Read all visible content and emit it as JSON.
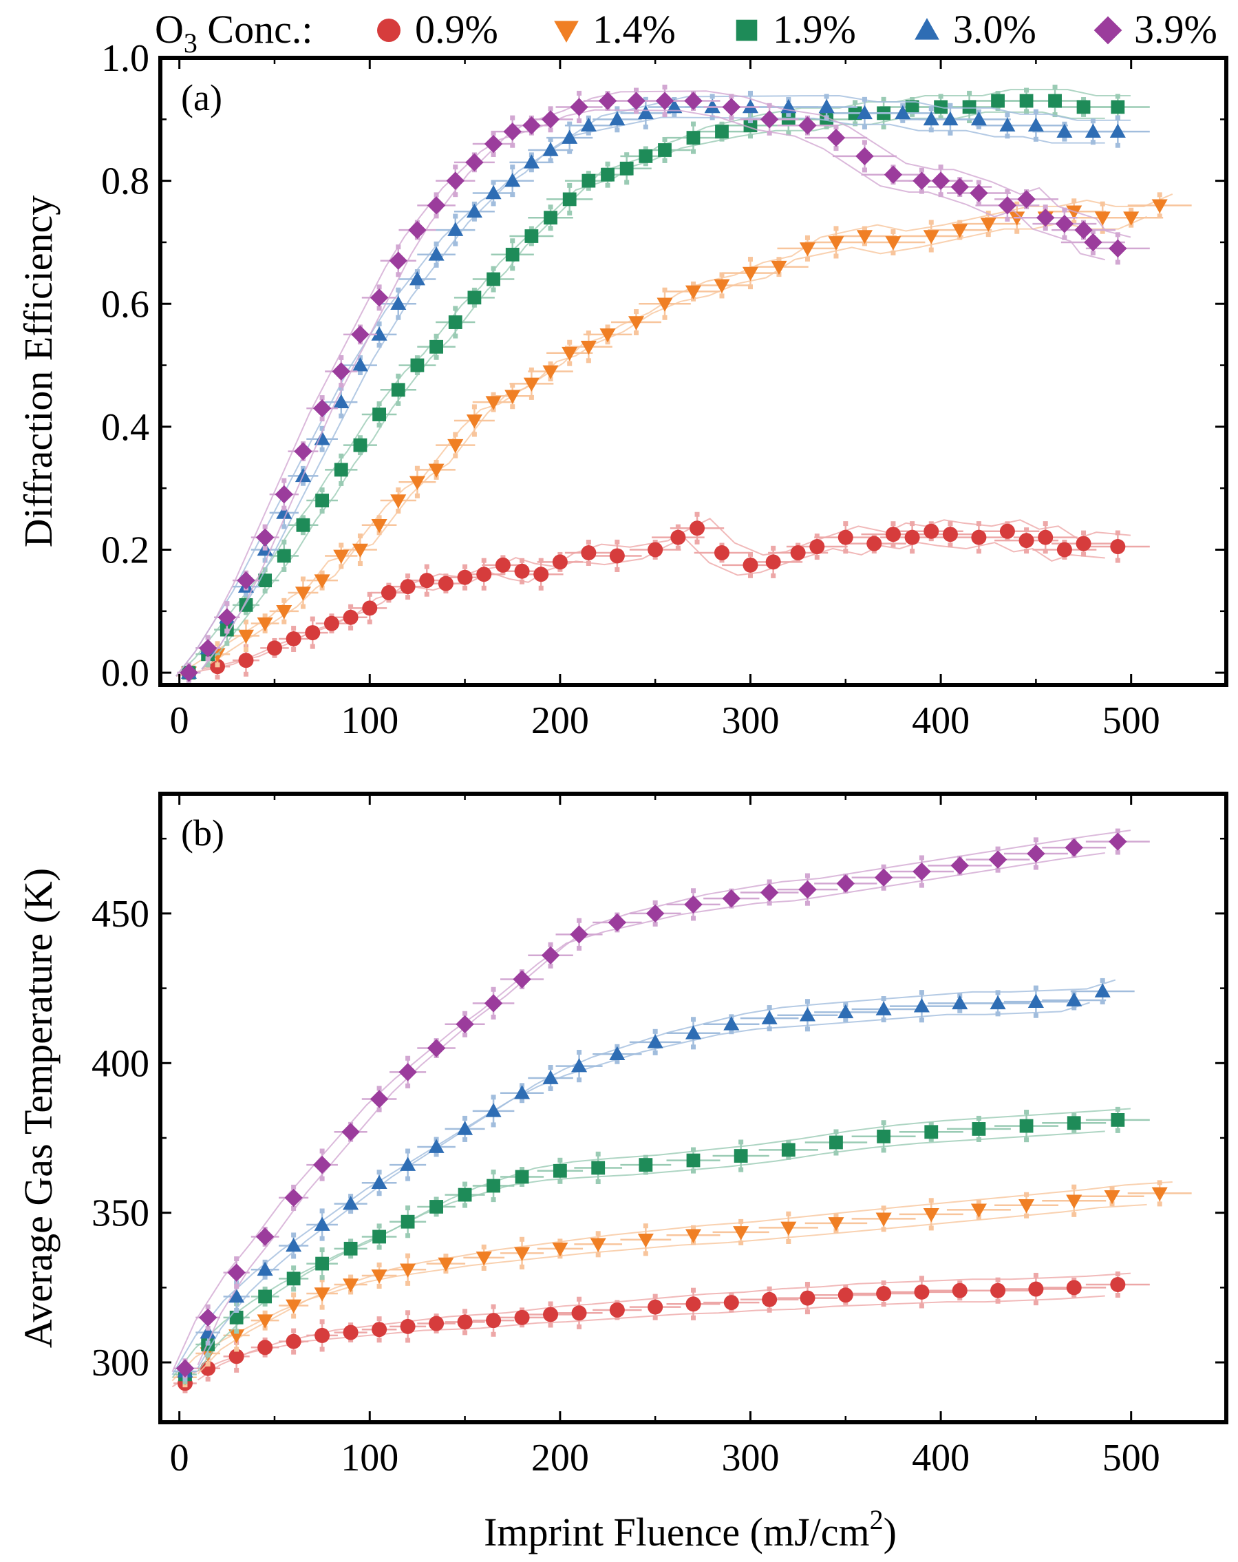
{
  "legend": {
    "title_main": "O",
    "title_sub": "3",
    "title_rest": " Conc.:",
    "entries": [
      {
        "label": "0.9%",
        "color": "#d63c3c",
        "marker": "circle"
      },
      {
        "label": "1.4%",
        "color": "#f07f24",
        "marker": "triangle-down"
      },
      {
        "label": "1.9%",
        "color": "#1e8b58",
        "marker": "square"
      },
      {
        "label": "3.0%",
        "color": "#2e6db4",
        "marker": "triangle-up"
      },
      {
        "label": "3.9%",
        "color": "#9b3c9c",
        "marker": "diamond"
      }
    ]
  },
  "shared_xlabel": {
    "main": "Imprint Fluence (mJ/cm",
    "sup": "2",
    "end": ")"
  },
  "chart_data": [
    {
      "type": "scatter",
      "panel_label": "(a)",
      "title": "",
      "xlabel": "Imprint Fluence (mJ/cm2)",
      "ylabel": "Diffraction Efficiency",
      "xlim": [
        -10,
        550
      ],
      "ylim": [
        -0.02,
        1.0
      ],
      "xticks": [
        0,
        100,
        200,
        300,
        400,
        500
      ],
      "xtick_labels": [
        "0",
        "100",
        "200",
        "300",
        "400",
        "500"
      ],
      "yticks": [
        0.0,
        0.2,
        0.4,
        0.6,
        0.8,
        1.0
      ],
      "ytick_labels": [
        "0.0",
        "0.2",
        "0.4",
        "0.6",
        "0.8",
        "1.0"
      ],
      "series": [
        {
          "name": "0.9%",
          "x": [
            5,
            20,
            35,
            50,
            60,
            70,
            80,
            90,
            100,
            110,
            120,
            130,
            140,
            150,
            160,
            170,
            180,
            190,
            200,
            215,
            230,
            250,
            262,
            272,
            285,
            300,
            312,
            325,
            335,
            350,
            365,
            375,
            385,
            395,
            405,
            420,
            435,
            445,
            455,
            465,
            475,
            493
          ],
          "y": [
            0.0,
            0.01,
            0.02,
            0.04,
            0.055,
            0.065,
            0.08,
            0.09,
            0.105,
            0.13,
            0.14,
            0.15,
            0.145,
            0.155,
            0.16,
            0.175,
            0.165,
            0.16,
            0.18,
            0.195,
            0.19,
            0.2,
            0.22,
            0.235,
            0.195,
            0.175,
            0.18,
            0.195,
            0.205,
            0.22,
            0.21,
            0.225,
            0.22,
            0.23,
            0.225,
            0.22,
            0.23,
            0.215,
            0.22,
            0.2,
            0.21,
            0.205
          ]
        },
        {
          "name": "1.4%",
          "x": [
            5,
            20,
            35,
            45,
            55,
            65,
            75,
            85,
            95,
            105,
            115,
            125,
            135,
            145,
            155,
            165,
            175,
            185,
            195,
            205,
            215,
            225,
            240,
            255,
            270,
            285,
            300,
            315,
            330,
            345,
            360,
            375,
            395,
            410,
            425,
            440,
            455,
            470,
            485,
            500,
            515
          ],
          "y": [
            0.0,
            0.03,
            0.06,
            0.08,
            0.1,
            0.13,
            0.15,
            0.19,
            0.2,
            0.24,
            0.28,
            0.31,
            0.33,
            0.37,
            0.41,
            0.44,
            0.45,
            0.47,
            0.49,
            0.52,
            0.53,
            0.55,
            0.57,
            0.6,
            0.62,
            0.63,
            0.65,
            0.66,
            0.69,
            0.7,
            0.71,
            0.7,
            0.71,
            0.72,
            0.73,
            0.74,
            0.74,
            0.75,
            0.74,
            0.74,
            0.76
          ]
        },
        {
          "name": "1.9%",
          "x": [
            5,
            15,
            25,
            35,
            45,
            55,
            65,
            75,
            85,
            95,
            105,
            115,
            125,
            135,
            145,
            155,
            165,
            175,
            185,
            195,
            205,
            215,
            225,
            235,
            245,
            255,
            270,
            285,
            300,
            320,
            340,
            355,
            370,
            385,
            400,
            415,
            430,
            445,
            460,
            475,
            493
          ],
          "y": [
            0.0,
            0.03,
            0.07,
            0.11,
            0.15,
            0.19,
            0.24,
            0.28,
            0.33,
            0.37,
            0.42,
            0.46,
            0.5,
            0.53,
            0.57,
            0.61,
            0.64,
            0.68,
            0.71,
            0.74,
            0.77,
            0.8,
            0.81,
            0.82,
            0.84,
            0.85,
            0.87,
            0.88,
            0.89,
            0.9,
            0.9,
            0.91,
            0.91,
            0.92,
            0.92,
            0.92,
            0.93,
            0.93,
            0.93,
            0.92,
            0.92
          ]
        },
        {
          "name": "3.0%",
          "x": [
            5,
            15,
            25,
            35,
            45,
            55,
            65,
            75,
            85,
            95,
            105,
            115,
            125,
            135,
            145,
            155,
            165,
            175,
            185,
            195,
            205,
            215,
            230,
            245,
            260,
            280,
            300,
            320,
            340,
            360,
            380,
            395,
            405,
            420,
            435,
            450,
            465,
            480,
            493
          ],
          "y": [
            0.0,
            0.04,
            0.09,
            0.14,
            0.2,
            0.26,
            0.32,
            0.38,
            0.44,
            0.5,
            0.55,
            0.6,
            0.64,
            0.68,
            0.72,
            0.75,
            0.78,
            0.8,
            0.83,
            0.85,
            0.87,
            0.89,
            0.9,
            0.91,
            0.92,
            0.92,
            0.92,
            0.92,
            0.92,
            0.91,
            0.91,
            0.9,
            0.9,
            0.9,
            0.89,
            0.89,
            0.88,
            0.88,
            0.88
          ]
        },
        {
          "name": "3.9%",
          "x": [
            5,
            15,
            25,
            35,
            45,
            55,
            65,
            75,
            85,
            95,
            105,
            115,
            125,
            135,
            145,
            155,
            165,
            175,
            185,
            195,
            210,
            225,
            240,
            255,
            270,
            290,
            310,
            330,
            345,
            360,
            375,
            390,
            400,
            410,
            420,
            435,
            445,
            455,
            465,
            475,
            480,
            493
          ],
          "y": [
            0.0,
            0.04,
            0.09,
            0.15,
            0.22,
            0.29,
            0.36,
            0.43,
            0.49,
            0.55,
            0.61,
            0.67,
            0.72,
            0.76,
            0.8,
            0.83,
            0.86,
            0.88,
            0.89,
            0.9,
            0.92,
            0.93,
            0.93,
            0.93,
            0.93,
            0.92,
            0.9,
            0.89,
            0.87,
            0.84,
            0.81,
            0.8,
            0.8,
            0.79,
            0.78,
            0.76,
            0.77,
            0.74,
            0.73,
            0.72,
            0.7,
            0.69
          ]
        }
      ]
    },
    {
      "type": "scatter",
      "panel_label": "(b)",
      "title": "",
      "xlabel": "Imprint Fluence (mJ/cm2)",
      "ylabel": "Average Gas Temperature (K)",
      "xlim": [
        -10,
        550
      ],
      "ylim": [
        280,
        490
      ],
      "xticks": [
        0,
        100,
        200,
        300,
        400,
        500
      ],
      "xtick_labels": [
        "0",
        "100",
        "200",
        "300",
        "400",
        "500"
      ],
      "yticks": [
        300,
        350,
        400,
        450
      ],
      "ytick_labels": [
        "300",
        "350",
        "400",
        "450"
      ],
      "series": [
        {
          "name": "0.9%",
          "x": [
            3,
            15,
            30,
            45,
            60,
            75,
            90,
            105,
            120,
            135,
            150,
            165,
            180,
            195,
            210,
            230,
            250,
            270,
            290,
            310,
            330,
            350,
            370,
            390,
            410,
            430,
            450,
            470,
            493
          ],
          "y": [
            293,
            298,
            302,
            305,
            307,
            309,
            310,
            311,
            312,
            313,
            313.5,
            314,
            315,
            316,
            316.5,
            317.5,
            318.5,
            319.5,
            320,
            321,
            321.5,
            322.5,
            323,
            323.5,
            324,
            324,
            324.5,
            325,
            326
          ]
        },
        {
          "name": "1.4%",
          "x": [
            3,
            15,
            30,
            45,
            60,
            75,
            90,
            105,
            120,
            140,
            160,
            180,
            200,
            220,
            245,
            270,
            295,
            320,
            345,
            370,
            395,
            420,
            445,
            470,
            490,
            515
          ],
          "y": [
            295,
            303,
            309,
            314,
            319,
            323,
            326,
            329,
            331,
            333,
            335,
            336.5,
            338,
            339.5,
            341,
            342.5,
            343.5,
            345,
            346.5,
            348,
            349.5,
            351,
            352.5,
            354,
            355.5,
            356.5
          ]
        },
        {
          "name": "1.9%",
          "x": [
            3,
            15,
            30,
            45,
            60,
            75,
            90,
            105,
            120,
            135,
            150,
            165,
            180,
            200,
            220,
            245,
            270,
            295,
            320,
            345,
            370,
            395,
            420,
            445,
            470,
            493
          ],
          "y": [
            296,
            306,
            315,
            322,
            328,
            333,
            338,
            342,
            347,
            352,
            356,
            359,
            362,
            364,
            365,
            366,
            367.5,
            369,
            371,
            373.5,
            375.5,
            377,
            378,
            379,
            380,
            381
          ]
        },
        {
          "name": "3.0%",
          "x": [
            3,
            15,
            30,
            45,
            60,
            75,
            90,
            105,
            120,
            135,
            150,
            165,
            180,
            195,
            210,
            230,
            250,
            270,
            290,
            310,
            330,
            350,
            370,
            390,
            410,
            430,
            450,
            470,
            485
          ],
          "y": [
            297,
            310,
            322,
            331,
            339,
            346,
            353,
            360,
            366,
            372,
            378,
            384,
            390,
            395,
            399,
            403,
            407,
            410,
            413,
            415,
            416,
            417,
            418,
            419,
            420,
            420,
            420.5,
            421,
            424
          ]
        },
        {
          "name": "3.9%",
          "x": [
            3,
            15,
            30,
            45,
            60,
            75,
            90,
            105,
            120,
            135,
            150,
            165,
            180,
            195,
            210,
            230,
            250,
            270,
            290,
            310,
            330,
            350,
            370,
            390,
            410,
            430,
            450,
            470,
            493
          ],
          "y": [
            298,
            315,
            330,
            342,
            355,
            366,
            377,
            388,
            397,
            405,
            413,
            420,
            428,
            436,
            443,
            447,
            450,
            453,
            455,
            457,
            458,
            460,
            462,
            464,
            466,
            468,
            470,
            472,
            474
          ]
        }
      ]
    }
  ]
}
